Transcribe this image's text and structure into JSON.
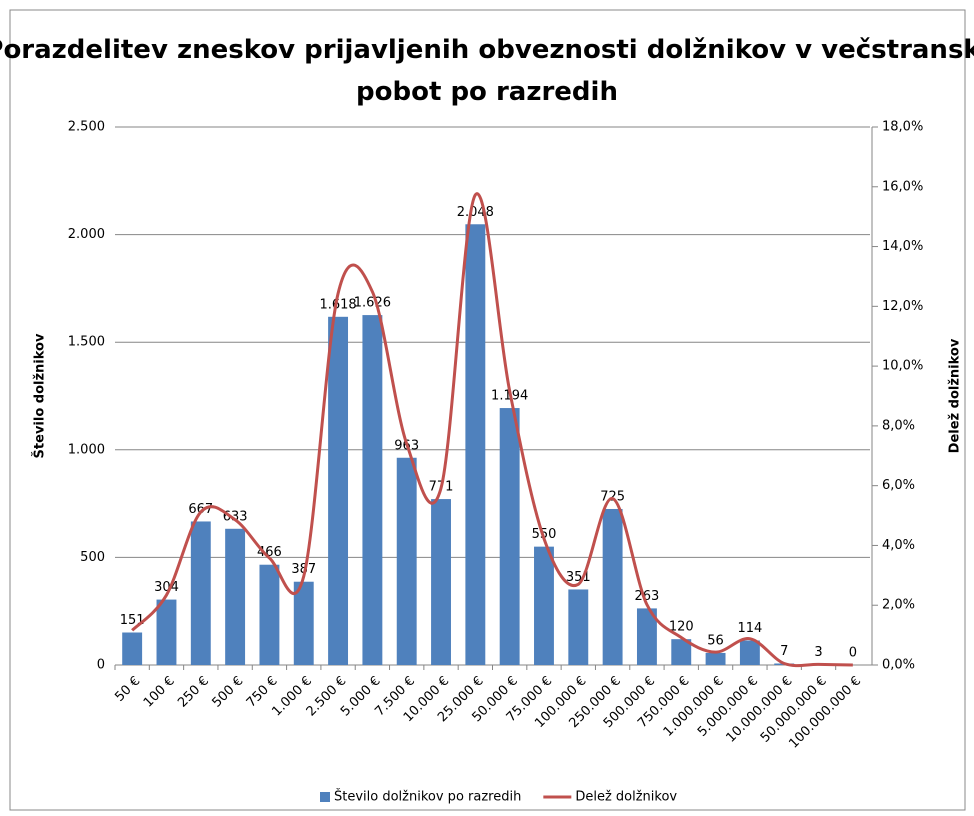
{
  "chart_data": {
    "type": "bar",
    "title": "Porazdelitev zneskov prijavljenih obveznosti dolžnikov v večstranski pobot po razredih",
    "y_label": "Število dolžnikov",
    "y2_label": "Delež dolžnikov",
    "categories": [
      "50 €",
      "100 €",
      "250 €",
      "500 €",
      "750 €",
      "1.000 €",
      "2.500 €",
      "5.000 €",
      "7.500 €",
      "10.000 €",
      "25.000 €",
      "50.000 €",
      "75.000 €",
      "100.000 €",
      "250.000 €",
      "500.000 €",
      "750.000 €",
      "1.000.000 €",
      "5.000.000 €",
      "10.000.000 €",
      "50.000.000 €",
      "100.000.000 €"
    ],
    "series": [
      {
        "name": "Število dolžnikov po razredih",
        "type": "bar",
        "color": "#4f81bd",
        "values": [
          151,
          304,
          667,
          633,
          466,
          387,
          1618,
          1626,
          963,
          771,
          2048,
          1194,
          550,
          351,
          725,
          263,
          120,
          56,
          114,
          7,
          3,
          0
        ],
        "value_labels": [
          "151",
          "304",
          "667",
          "633",
          "466",
          "387",
          "1.618",
          "1.626",
          "963",
          "771",
          "2.048",
          "1.194",
          "550",
          "351",
          "725",
          "263",
          "120",
          "56",
          "114",
          "7",
          "3",
          "0"
        ]
      },
      {
        "name": "Delež dolžnikov",
        "type": "line",
        "axis": "y2",
        "color": "#c0504d",
        "values": [
          1.16,
          2.34,
          5.12,
          4.86,
          3.58,
          2.97,
          12.43,
          12.49,
          7.4,
          5.92,
          15.73,
          9.17,
          4.23,
          2.7,
          5.57,
          2.02,
          0.92,
          0.43,
          0.88,
          0.05,
          0.02,
          0
        ]
      }
    ],
    "ylim": [
      0,
      2500
    ],
    "yticks": [
      0,
      500,
      {
        "value": 1000,
        "label": "1.000"
      },
      {
        "value": 1500,
        "label": "1.500"
      },
      {
        "value": 2000,
        "label": "2.000"
      },
      {
        "value": 2500,
        "label": "2.500"
      }
    ],
    "y2lim": [
      0,
      18
    ],
    "y2ticks": [
      {
        "value": 0,
        "label": "0,0%"
      },
      {
        "value": 2,
        "label": "2,0%"
      },
      {
        "value": 4,
        "label": "4,0%"
      },
      {
        "value": 6,
        "label": "6,0%"
      },
      {
        "value": 8,
        "label": "8,0%"
      },
      {
        "value": 10,
        "label": "10,0%"
      },
      {
        "value": 12,
        "label": "12,0%"
      },
      {
        "value": 14,
        "label": "14,0%"
      },
      {
        "value": 16,
        "label": "16,0%"
      },
      {
        "value": 18,
        "label": "18,0%"
      }
    ],
    "grid": true,
    "legend": "bottom"
  }
}
